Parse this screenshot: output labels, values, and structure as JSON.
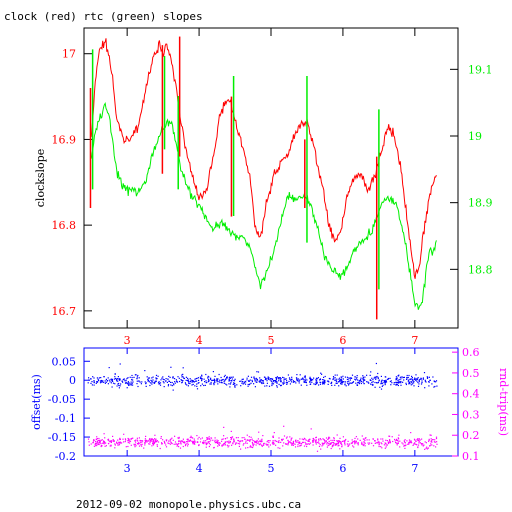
{
  "header": {
    "title": "clock (red) rtc (green) slopes"
  },
  "footer": {
    "text": "2012-09-02  monopole.physics.ubc.ca"
  },
  "colors": {
    "clock": "#ff0000",
    "rtc": "#00ee00",
    "offset": "#0000ff",
    "rndtrip": "#ff00ff",
    "axis_top": "#000000",
    "axis_bottom": "#0000ff"
  },
  "chart_data": [
    {
      "type": "line",
      "title": "clock (red) rtc (green) slopes",
      "ylabel": "clockslope",
      "xlim": [
        2.4,
        7.6
      ],
      "ylim_left": [
        16.68,
        17.03
      ],
      "ylim_right": [
        18.712,
        19.162
      ],
      "x_ticks": [
        3,
        4,
        5,
        6,
        7
      ],
      "x_tick_labels": [
        "3",
        "4",
        "5",
        "6",
        "7"
      ],
      "y_left_ticks": [
        16.7,
        16.8,
        16.9,
        17
      ],
      "y_left_tick_labels": [
        "16.7",
        "16.8",
        "16.9",
        "17"
      ],
      "y_right_ticks": [
        18.8,
        18.9,
        19.0,
        19.1
      ],
      "y_right_tick_labels": [
        "18.8",
        "18.9",
        "19",
        "19.1"
      ],
      "grid": false,
      "series": [
        {
          "name": "clock (red)",
          "color": "#ff0000",
          "axis": "left",
          "x": [
            2.5,
            2.55,
            2.6,
            2.7,
            2.75,
            2.8,
            2.85,
            2.95,
            3.05,
            3.15,
            3.25,
            3.35,
            3.45,
            3.5,
            3.55,
            3.62,
            3.68,
            3.75,
            3.82,
            3.9,
            4.0,
            4.1,
            4.2,
            4.3,
            4.4,
            4.45,
            4.5,
            4.6,
            4.7,
            4.78,
            4.85,
            4.95,
            5.05,
            5.15,
            5.22,
            5.3,
            5.4,
            5.5,
            5.6,
            5.7,
            5.75,
            5.8,
            5.9,
            6.0,
            6.05,
            6.15,
            6.25,
            6.35,
            6.45,
            6.5,
            6.55,
            6.6,
            6.7,
            6.8,
            6.9,
            6.95,
            7.0,
            7.05,
            7.1,
            7.2,
            7.25,
            7.3
          ],
          "y": [
            16.9,
            16.96,
            17.0,
            17.015,
            17.0,
            16.97,
            16.925,
            16.9,
            16.9,
            16.915,
            16.955,
            16.99,
            17.01,
            17.0,
            17.01,
            16.99,
            16.96,
            16.92,
            16.885,
            16.86,
            16.83,
            16.84,
            16.88,
            16.93,
            16.95,
            16.94,
            16.92,
            16.89,
            16.86,
            16.8,
            16.785,
            16.83,
            16.86,
            16.875,
            16.88,
            16.9,
            16.915,
            16.92,
            16.89,
            16.85,
            16.83,
            16.8,
            16.78,
            16.805,
            16.83,
            16.855,
            16.86,
            16.84,
            16.86,
            16.875,
            16.89,
            16.91,
            16.91,
            16.87,
            16.8,
            16.77,
            16.74,
            16.745,
            16.78,
            16.83,
            16.85,
            16.86
          ]
        },
        {
          "name": "rtc (green)",
          "color": "#00ee00",
          "axis": "right",
          "x": [
            2.5,
            2.55,
            2.6,
            2.65,
            2.7,
            2.75,
            2.8,
            2.85,
            2.95,
            3.05,
            3.15,
            3.25,
            3.35,
            3.45,
            3.5,
            3.55,
            3.62,
            3.68,
            3.75,
            3.82,
            3.9,
            4.0,
            4.1,
            4.2,
            4.3,
            4.4,
            4.5,
            4.6,
            4.7,
            4.78,
            4.85,
            4.95,
            5.05,
            5.15,
            5.25,
            5.35,
            5.45,
            5.55,
            5.65,
            5.75,
            5.85,
            5.95,
            6.05,
            6.15,
            6.25,
            6.35,
            6.45,
            6.55,
            6.65,
            6.75,
            6.85,
            6.95,
            7.0,
            7.05,
            7.1,
            7.15,
            7.2,
            7.3
          ],
          "y": [
            18.97,
            19.0,
            19.02,
            19.035,
            19.045,
            19.03,
            18.99,
            18.95,
            18.92,
            18.92,
            18.915,
            18.93,
            18.97,
            19.0,
            19.01,
            19.02,
            19.02,
            18.99,
            18.95,
            18.93,
            18.91,
            18.895,
            18.875,
            18.86,
            18.87,
            18.86,
            18.85,
            18.845,
            18.835,
            18.805,
            18.775,
            18.8,
            18.83,
            18.88,
            18.91,
            18.905,
            18.91,
            18.9,
            18.86,
            18.82,
            18.8,
            18.79,
            18.8,
            18.825,
            18.84,
            18.85,
            18.87,
            18.9,
            18.905,
            18.895,
            18.85,
            18.78,
            18.75,
            18.74,
            18.75,
            18.79,
            18.82,
            18.84
          ]
        }
      ],
      "spikes": [
        {
          "x": 2.49,
          "low": 16.82,
          "high": 16.96,
          "color": "#ff0000"
        },
        {
          "x": 2.52,
          "low": 18.92,
          "high": 19.13,
          "color": "#00ee00"
        },
        {
          "x": 3.49,
          "low": 16.86,
          "high": 17.01,
          "color": "#ff0000"
        },
        {
          "x": 3.52,
          "low": 18.98,
          "high": 19.12,
          "color": "#00ee00"
        },
        {
          "x": 3.71,
          "low": 18.92,
          "high": 19.06,
          "color": "#00ee00"
        },
        {
          "x": 3.73,
          "low": 16.88,
          "high": 17.02,
          "color": "#ff0000"
        },
        {
          "x": 4.45,
          "low": 16.81,
          "high": 16.95,
          "color": "#ff0000"
        },
        {
          "x": 4.48,
          "low": 18.88,
          "high": 19.09,
          "color": "#00ee00"
        },
        {
          "x": 5.47,
          "low": 16.82,
          "high": 16.9,
          "color": "#ff0000"
        },
        {
          "x": 5.5,
          "low": 18.84,
          "high": 19.09,
          "color": "#00ee00"
        },
        {
          "x": 6.47,
          "low": 16.69,
          "high": 16.88,
          "color": "#ff0000"
        },
        {
          "x": 6.5,
          "low": 18.77,
          "high": 19.04,
          "color": "#00ee00"
        }
      ]
    },
    {
      "type": "scatter",
      "ylabel": "offset(ms)",
      "y2label": "rnd-trip(ms)",
      "xlim": [
        2.4,
        7.6
      ],
      "ylim_left": [
        -0.2,
        0.085
      ],
      "ylim_right": [
        0.1,
        0.62
      ],
      "x_ticks": [
        3,
        4,
        5,
        6,
        7
      ],
      "x_tick_labels": [
        "3",
        "4",
        "5",
        "6",
        "7"
      ],
      "y_left_ticks": [
        -0.2,
        -0.15,
        -0.1,
        -0.05,
        0,
        0.05
      ],
      "y_left_tick_labels": [
        "-0.2",
        "-0.15",
        "-0.1",
        "-0.05",
        "0",
        "0.05"
      ],
      "y_right_ticks": [
        0.1,
        0.2,
        0.3,
        0.4,
        0.5,
        0.6
      ],
      "y_right_tick_labels": [
        "0.1",
        "0.2",
        "0.3",
        "0.4",
        "0.5",
        "0.6"
      ],
      "grid": false,
      "series": [
        {
          "name": "offset(ms)",
          "color": "#0000ff",
          "axis": "left",
          "x_range": [
            2.45,
            7.3
          ],
          "center": 0.0,
          "spread": 0.01,
          "count": 900
        },
        {
          "name": "rnd-trip(ms)",
          "color": "#ff00ff",
          "axis": "right",
          "x_range": [
            2.45,
            7.3
          ],
          "center": 0.17,
          "spread": 0.018,
          "count": 900
        }
      ]
    }
  ]
}
